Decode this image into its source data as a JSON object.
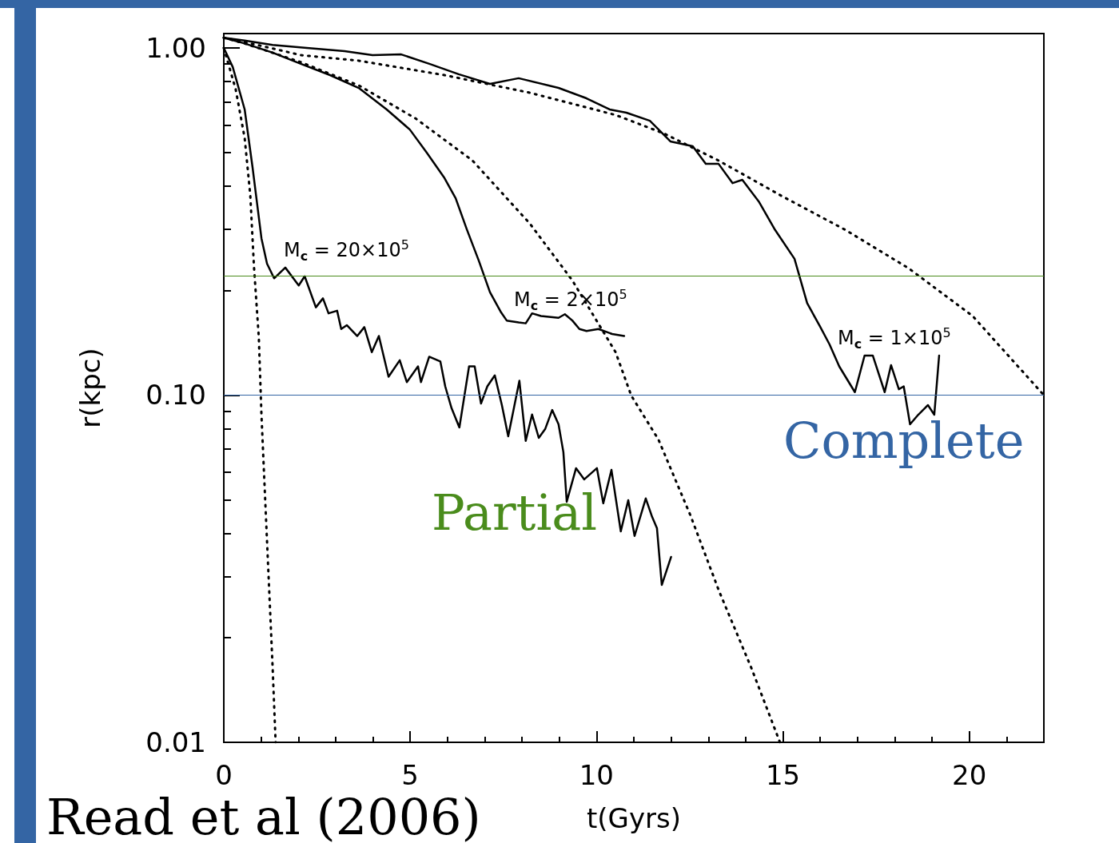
{
  "chart_data": {
    "type": "line",
    "xlabel": "t(Gyrs)",
    "ylabel": "r(kpc)",
    "log": "y",
    "xlim": [
      0,
      22
    ],
    "xticks": [
      0,
      5,
      10,
      15,
      20
    ],
    "ylim": [
      0.01,
      1.1
    ],
    "yticks": [
      {
        "value": 0.01,
        "label": "0.01"
      },
      {
        "value": 0.1,
        "label": "0.10"
      },
      {
        "value": 1,
        "label": "1.00"
      }
    ],
    "grid": false,
    "marker": "none",
    "series": [
      {
        "color": "#000000",
        "line_style": "solid",
        "x": [
          0,
          0.24,
          0.56,
          0.77,
          1.01,
          1.16,
          1.35,
          1.65,
          2.01,
          2.17,
          2.47,
          2.66,
          2.81,
          3.04,
          3.15,
          3.3,
          3.58,
          3.77,
          3.97,
          4.16,
          4.42,
          4.72,
          4.91,
          5.21,
          5.29,
          5.51,
          5.81,
          5.94,
          6.11,
          6.32,
          6.58,
          6.73,
          6.9,
          7.07,
          7.27,
          7.46,
          7.63,
          7.93,
          8.1,
          8.27,
          8.45,
          8.62,
          8.81,
          8.98,
          9.11,
          9.2,
          9.45,
          9.67,
          10.01,
          10.18,
          10.4,
          10.65,
          10.85,
          11.02,
          11.32,
          11.49,
          11.62,
          11.75,
          12.0
        ],
        "values": [
          1.0,
          0.881,
          0.665,
          0.454,
          0.283,
          0.239,
          0.217,
          0.233,
          0.207,
          0.22,
          0.179,
          0.19,
          0.172,
          0.175,
          0.155,
          0.159,
          0.148,
          0.157,
          0.133,
          0.148,
          0.113,
          0.126,
          0.109,
          0.121,
          0.109,
          0.129,
          0.125,
          0.106,
          0.0917,
          0.0807,
          0.121,
          0.121,
          0.0946,
          0.106,
          0.114,
          0.0936,
          0.0761,
          0.11,
          0.0738,
          0.0879,
          0.0753,
          0.0798,
          0.0906,
          0.0824,
          0.0685,
          0.0493,
          0.0616,
          0.0572,
          0.0616,
          0.0488,
          0.0609,
          0.0405,
          0.0498,
          0.0393,
          0.0504,
          0.0446,
          0.0414,
          0.0284,
          0.0342
        ]
      },
      {
        "color": "#000000",
        "line_style": "solid",
        "x": [
          0,
          0.56,
          1.31,
          2.08,
          2.85,
          3.62,
          4.37,
          4.99,
          5.44,
          5.92,
          6.22,
          6.52,
          6.84,
          7.14,
          7.44,
          7.59,
          7.91,
          8.1,
          8.27,
          8.51,
          8.98,
          9.15,
          9.35,
          9.54,
          9.73,
          10.05,
          10.42,
          10.74
        ],
        "values": [
          1.07,
          1.03,
          0.969,
          0.899,
          0.835,
          0.767,
          0.665,
          0.582,
          0.5,
          0.422,
          0.369,
          0.3,
          0.244,
          0.198,
          0.173,
          0.164,
          0.162,
          0.161,
          0.172,
          0.169,
          0.167,
          0.171,
          0.164,
          0.155,
          0.153,
          0.155,
          0.15,
          0.148
        ]
      },
      {
        "color": "#000000",
        "line_style": "solid",
        "x": [
          0,
          0.56,
          1.31,
          2.23,
          3.24,
          3.99,
          4.76,
          5.53,
          6.3,
          7.14,
          7.91,
          8.98,
          9.73,
          10.35,
          10.8,
          11.43,
          11.98,
          12.58,
          12.93,
          13.27,
          13.65,
          13.91,
          14.36,
          14.79,
          15.31,
          15.65,
          15.99,
          16.25,
          16.51,
          16.93,
          17.19,
          17.41,
          17.73,
          17.9,
          18.11,
          18.24,
          18.41,
          18.63,
          18.89,
          19.06,
          19.19
        ],
        "values": [
          1.07,
          1.05,
          1.02,
          1.0,
          0.979,
          0.953,
          0.958,
          0.899,
          0.84,
          0.788,
          0.818,
          0.767,
          0.716,
          0.665,
          0.651,
          0.617,
          0.538,
          0.521,
          0.464,
          0.464,
          0.408,
          0.417,
          0.36,
          0.299,
          0.247,
          0.184,
          0.158,
          0.14,
          0.121,
          0.102,
          0.13,
          0.13,
          0.102,
          0.122,
          0.104,
          0.106,
          0.0824,
          0.0878,
          0.0936,
          0.0878,
          0.13
        ]
      },
      {
        "color": "#000000",
        "line_style": "dotted",
        "x": [
          0,
          0.32,
          0.56,
          0.71,
          0.81,
          0.94,
          1.01,
          1.14,
          1.31,
          1.39
        ],
        "values": [
          1.0,
          0.759,
          0.55,
          0.377,
          0.234,
          0.146,
          0.0878,
          0.0423,
          0.0164,
          0.01
        ]
      },
      {
        "color": "#000000",
        "line_style": "dotted",
        "x": [
          0,
          0.56,
          2.08,
          3.62,
          5.14,
          6.67,
          8.21,
          9.35,
          10.51,
          10.93,
          11.66,
          12.52,
          13.29,
          14.15,
          14.92
        ],
        "values": [
          1.07,
          1.03,
          0.909,
          0.78,
          0.627,
          0.474,
          0.312,
          0.214,
          0.133,
          0.0997,
          0.0745,
          0.045,
          0.0272,
          0.0164,
          0.01
        ]
      },
      {
        "color": "#000000",
        "line_style": "dotted",
        "x": [
          0,
          0.56,
          2.08,
          3.62,
          5.92,
          8.21,
          10.51,
          11.81,
          13.27,
          14.96,
          16.68,
          18.37,
          20.09,
          22.0
        ],
        "values": [
          1.07,
          1.04,
          0.953,
          0.919,
          0.835,
          0.743,
          0.641,
          0.567,
          0.474,
          0.375,
          0.299,
          0.232,
          0.169,
          0.1
        ]
      }
    ],
    "ref_lines": [
      {
        "axis": "y",
        "value": 0.217,
        "label": "Partial",
        "color": "#4a8c1c"
      },
      {
        "axis": "y",
        "value": 0.1,
        "label": "Complete",
        "color": "#3465a4"
      }
    ],
    "annotations": [
      "M$_{c}$ = 20×10$^{5}$",
      "M$_{c}$ = 2×10$^{5}$",
      "M$_{c}$ = 1×10$^{5}$",
      "Read et al (2006)"
    ]
  }
}
